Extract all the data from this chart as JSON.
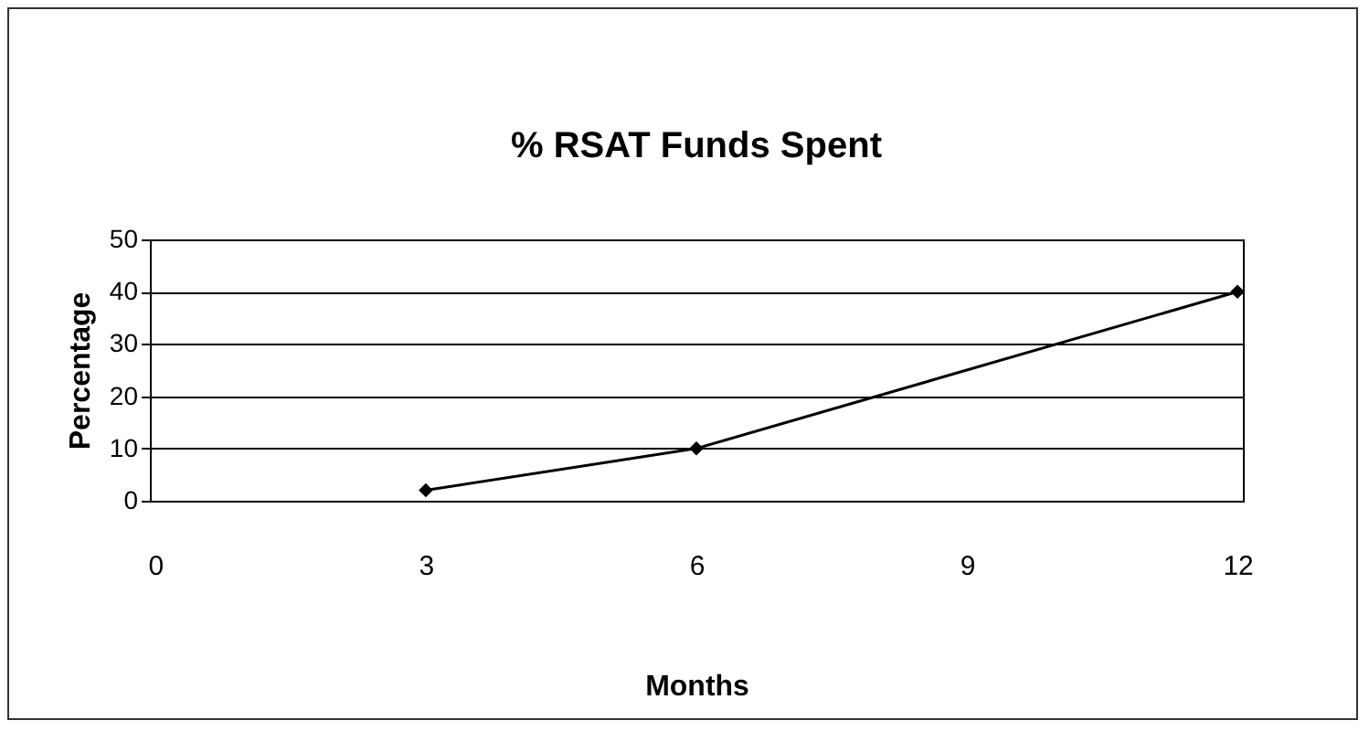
{
  "chart_data": {
    "type": "line",
    "title": "% RSAT Funds Spent",
    "xlabel": "Months",
    "ylabel": "Percentage",
    "categories": [
      "0",
      "3",
      "6",
      "9",
      "12"
    ],
    "series": [
      {
        "color": "#000000",
        "values": [
          null,
          2,
          10,
          null,
          40
        ]
      }
    ],
    "ylim": [
      0,
      50
    ],
    "yticks": [
      0,
      10,
      20,
      30,
      40,
      50
    ],
    "grid": "y",
    "marker": "diamond",
    "line_style": "solid"
  }
}
